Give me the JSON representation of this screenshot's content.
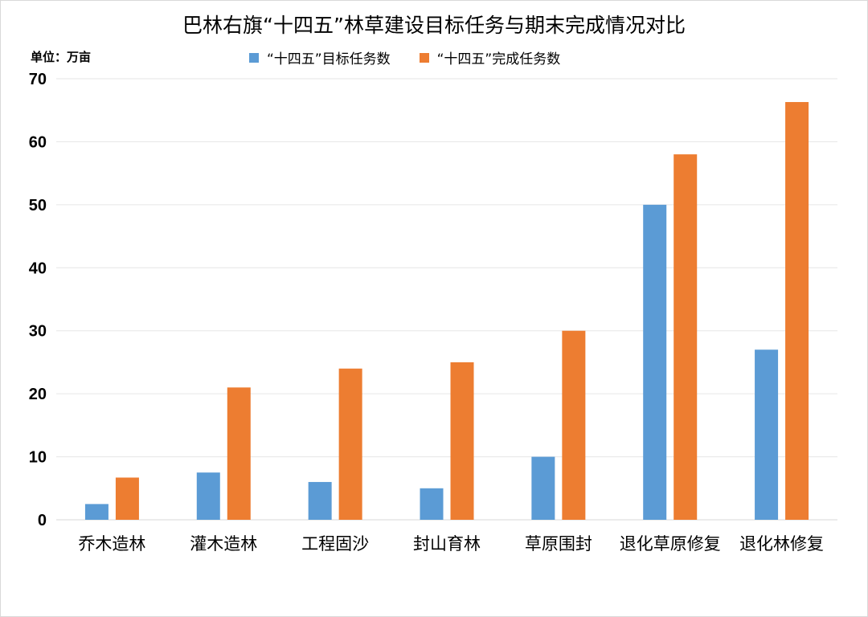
{
  "chart_data": {
    "type": "bar",
    "title": "巴林右旗“十四五”林草建设目标任务与期末完成情况对比",
    "unit_label": "单位：万亩",
    "categories": [
      "乔木造林",
      "灌木造林",
      "工程固沙",
      "封山育林",
      "草原围封",
      "退化草原修复",
      "退化林修复"
    ],
    "series": [
      {
        "name": "“十四五”目标任务数",
        "color": "#5b9bd5",
        "values": [
          2.5,
          7.5,
          6,
          5,
          10,
          50,
          27
        ]
      },
      {
        "name": "“十四五”完成任务数",
        "color": "#ed7d31",
        "values": [
          6.7,
          21,
          24,
          25,
          30,
          58,
          66.3
        ]
      }
    ],
    "ylim": [
      0,
      70
    ],
    "yticks": [
      0,
      10,
      20,
      30,
      40,
      50,
      60,
      70
    ],
    "grid": true,
    "legend_position": "top"
  }
}
